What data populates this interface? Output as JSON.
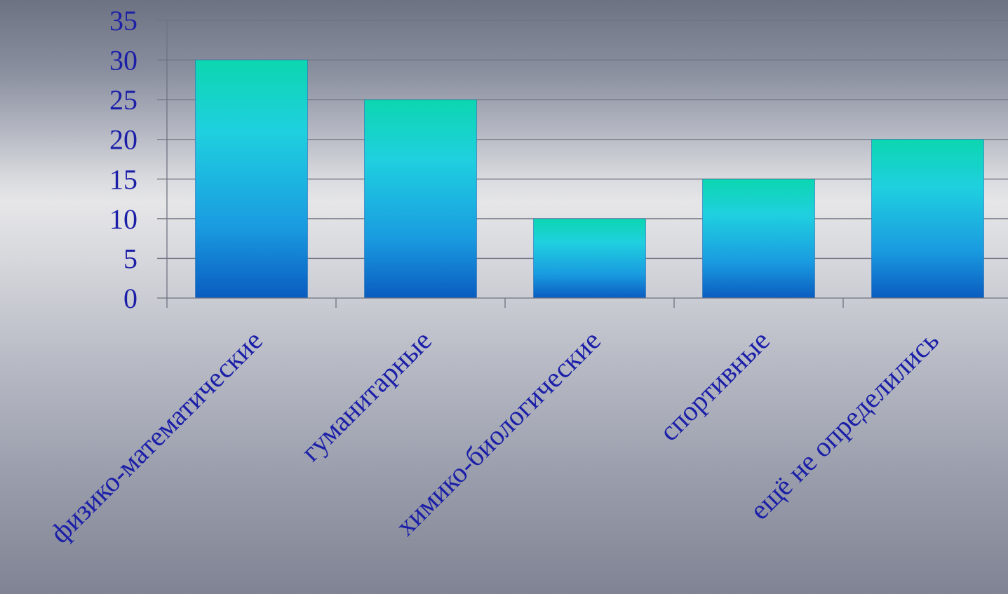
{
  "chart_data": {
    "type": "bar",
    "title": "",
    "xlabel": "",
    "ylabel": "",
    "categories": [
      "физико-математические",
      "гуманитарные",
      "химико-биологические",
      "спортивные",
      "ещё не определились"
    ],
    "values": [
      30,
      25,
      10,
      15,
      20
    ],
    "ylim": [
      0,
      35
    ],
    "yticks": [
      "0",
      "5",
      "10",
      "15",
      "20",
      "25",
      "30",
      "35"
    ],
    "grid": true,
    "legend": "none",
    "colors": {
      "bar_top": "#0cd6b0",
      "bar_mid": "#1fd0df",
      "bar_lower": "#1a9be0",
      "bar_bottom": "#0a5cc0",
      "text": "#1b1fa8",
      "gridline": "#6f7280"
    }
  }
}
